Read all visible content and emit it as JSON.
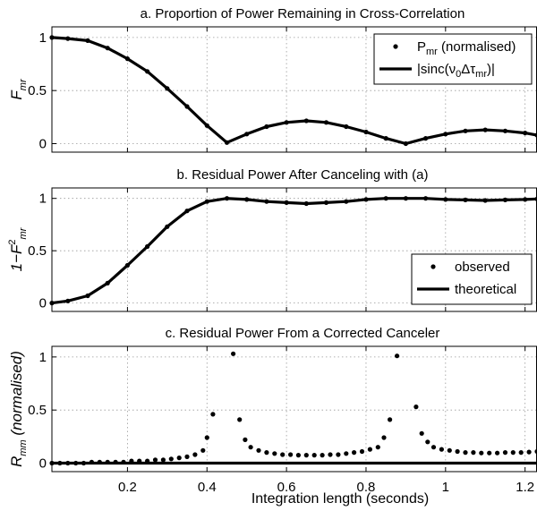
{
  "figure": {
    "xlabel": "Integration length (seconds)",
    "x_tick_labels": [
      "0.2",
      "0.4",
      "0.6",
      "0.8",
      "1",
      "1.2"
    ]
  },
  "chart_data": [
    {
      "type": "scatter",
      "title": "a. Proportion of Power Remaining in Cross-Correlation",
      "ylabel": {
        "base": "F",
        "sub": "mr"
      },
      "xlim": [
        0.01,
        1.23
      ],
      "ylim": [
        -0.08,
        1.1
      ],
      "y_ticks": [
        0,
        0.5,
        1
      ],
      "y_tick_labels": [
        "0",
        "0.5",
        "1"
      ],
      "grid": true,
      "legend_position": "top-right",
      "legend": [
        {
          "kind": "dots",
          "text_parts": [
            "P",
            "mr",
            " (normalised)"
          ]
        },
        {
          "kind": "line",
          "text_parts": [
            "|sinc(",
            "ν",
            "0",
            "Δτ",
            "mr",
            ")|"
          ]
        }
      ],
      "series": [
        {
          "name": "P_mr (normalised)",
          "style": "dots",
          "points": [
            [
              0.01,
              1.0
            ],
            [
              0.05,
              0.99
            ],
            [
              0.1,
              0.97
            ],
            [
              0.15,
              0.9
            ],
            [
              0.2,
              0.8
            ],
            [
              0.25,
              0.68
            ],
            [
              0.3,
              0.52
            ],
            [
              0.35,
              0.35
            ],
            [
              0.4,
              0.17
            ],
            [
              0.45,
              0.01
            ],
            [
              0.5,
              0.09
            ],
            [
              0.55,
              0.16
            ],
            [
              0.6,
              0.2
            ],
            [
              0.65,
              0.215
            ],
            [
              0.7,
              0.2
            ],
            [
              0.75,
              0.16
            ],
            [
              0.8,
              0.11
            ],
            [
              0.85,
              0.05
            ],
            [
              0.9,
              0.0
            ],
            [
              0.95,
              0.05
            ],
            [
              1.0,
              0.09
            ],
            [
              1.05,
              0.12
            ],
            [
              1.1,
              0.13
            ],
            [
              1.15,
              0.12
            ],
            [
              1.2,
              0.1
            ],
            [
              1.23,
              0.08
            ]
          ]
        },
        {
          "name": "|sinc(ν0Δτmr)|",
          "style": "line",
          "points": [
            [
              0.01,
              1.0
            ],
            [
              0.05,
              0.99
            ],
            [
              0.1,
              0.97
            ],
            [
              0.15,
              0.9
            ],
            [
              0.2,
              0.8
            ],
            [
              0.25,
              0.68
            ],
            [
              0.3,
              0.52
            ],
            [
              0.35,
              0.35
            ],
            [
              0.4,
              0.17
            ],
            [
              0.45,
              0.01
            ],
            [
              0.5,
              0.09
            ],
            [
              0.55,
              0.16
            ],
            [
              0.6,
              0.2
            ],
            [
              0.65,
              0.215
            ],
            [
              0.7,
              0.2
            ],
            [
              0.75,
              0.16
            ],
            [
              0.8,
              0.11
            ],
            [
              0.85,
              0.05
            ],
            [
              0.9,
              0.0
            ],
            [
              0.95,
              0.05
            ],
            [
              1.0,
              0.09
            ],
            [
              1.05,
              0.12
            ],
            [
              1.1,
              0.13
            ],
            [
              1.15,
              0.12
            ],
            [
              1.2,
              0.1
            ],
            [
              1.23,
              0.08
            ]
          ]
        }
      ]
    },
    {
      "type": "scatter",
      "title": "b. Residual Power After Canceling with (a)",
      "ylabel": {
        "base": "1−F",
        "sup": "2",
        "sub": "mr"
      },
      "xlim": [
        0.01,
        1.23
      ],
      "ylim": [
        -0.08,
        1.1
      ],
      "y_ticks": [
        0,
        0.5,
        1
      ],
      "y_tick_labels": [
        "0",
        "0.5",
        "1"
      ],
      "grid": true,
      "legend_position": "bottom-right",
      "legend": [
        {
          "kind": "dots",
          "text_parts": [
            "observed"
          ]
        },
        {
          "kind": "line",
          "text_parts": [
            "theoretical"
          ]
        }
      ],
      "series": [
        {
          "name": "observed",
          "style": "dots",
          "points": [
            [
              0.01,
              0.0
            ],
            [
              0.05,
              0.02
            ],
            [
              0.1,
              0.07
            ],
            [
              0.15,
              0.19
            ],
            [
              0.2,
              0.36
            ],
            [
              0.25,
              0.54
            ],
            [
              0.3,
              0.73
            ],
            [
              0.35,
              0.88
            ],
            [
              0.4,
              0.97
            ],
            [
              0.45,
              1.0
            ],
            [
              0.5,
              0.99
            ],
            [
              0.55,
              0.97
            ],
            [
              0.6,
              0.96
            ],
            [
              0.65,
              0.95
            ],
            [
              0.7,
              0.96
            ],
            [
              0.75,
              0.97
            ],
            [
              0.8,
              0.99
            ],
            [
              0.85,
              1.0
            ],
            [
              0.9,
              1.0
            ],
            [
              0.95,
              1.0
            ],
            [
              1.0,
              0.99
            ],
            [
              1.05,
              0.985
            ],
            [
              1.1,
              0.98
            ],
            [
              1.15,
              0.985
            ],
            [
              1.2,
              0.99
            ],
            [
              1.23,
              0.995
            ]
          ]
        },
        {
          "name": "theoretical",
          "style": "line",
          "points": [
            [
              0.01,
              0.0
            ],
            [
              0.05,
              0.02
            ],
            [
              0.1,
              0.07
            ],
            [
              0.15,
              0.19
            ],
            [
              0.2,
              0.36
            ],
            [
              0.25,
              0.54
            ],
            [
              0.3,
              0.73
            ],
            [
              0.35,
              0.88
            ],
            [
              0.4,
              0.97
            ],
            [
              0.45,
              1.0
            ],
            [
              0.5,
              0.99
            ],
            [
              0.55,
              0.97
            ],
            [
              0.6,
              0.96
            ],
            [
              0.65,
              0.95
            ],
            [
              0.7,
              0.96
            ],
            [
              0.75,
              0.97
            ],
            [
              0.8,
              0.99
            ],
            [
              0.85,
              1.0
            ],
            [
              0.9,
              1.0
            ],
            [
              0.95,
              1.0
            ],
            [
              1.0,
              0.99
            ],
            [
              1.05,
              0.985
            ],
            [
              1.1,
              0.98
            ],
            [
              1.15,
              0.985
            ],
            [
              1.2,
              0.99
            ],
            [
              1.23,
              0.995
            ]
          ]
        }
      ]
    },
    {
      "type": "scatter",
      "title": "c. Residual Power From a Corrected Canceler",
      "ylabel": {
        "base": "R",
        "sub": "mm",
        "suffix": "  (normalised)"
      },
      "xlim": [
        0.01,
        1.23
      ],
      "ylim": [
        -0.08,
        1.1
      ],
      "y_ticks": [
        0,
        0.5,
        1
      ],
      "y_tick_labels": [
        "0",
        "0.5",
        "1"
      ],
      "grid": true,
      "series": [
        {
          "name": "observed",
          "style": "dots",
          "points": [
            [
              0.01,
              0.0
            ],
            [
              0.03,
              0.0
            ],
            [
              0.05,
              0.0
            ],
            [
              0.07,
              0.0
            ],
            [
              0.09,
              0.0
            ],
            [
              0.11,
              0.01
            ],
            [
              0.13,
              0.01
            ],
            [
              0.15,
              0.01
            ],
            [
              0.17,
              0.01
            ],
            [
              0.19,
              0.01
            ],
            [
              0.21,
              0.02
            ],
            [
              0.23,
              0.02
            ],
            [
              0.25,
              0.02
            ],
            [
              0.27,
              0.03
            ],
            [
              0.29,
              0.03
            ],
            [
              0.31,
              0.04
            ],
            [
              0.33,
              0.05
            ],
            [
              0.35,
              0.06
            ],
            [
              0.37,
              0.08
            ],
            [
              0.39,
              0.12
            ],
            [
              0.4,
              0.24
            ],
            [
              0.415,
              0.46
            ],
            [
              0.466,
              1.03
            ],
            [
              0.482,
              0.41
            ],
            [
              0.496,
              0.22
            ],
            [
              0.51,
              0.15
            ],
            [
              0.53,
              0.12
            ],
            [
              0.55,
              0.1
            ],
            [
              0.57,
              0.09
            ],
            [
              0.59,
              0.08
            ],
            [
              0.61,
              0.08
            ],
            [
              0.63,
              0.075
            ],
            [
              0.65,
              0.075
            ],
            [
              0.67,
              0.075
            ],
            [
              0.69,
              0.075
            ],
            [
              0.71,
              0.08
            ],
            [
              0.73,
              0.08
            ],
            [
              0.75,
              0.09
            ],
            [
              0.77,
              0.1
            ],
            [
              0.79,
              0.11
            ],
            [
              0.81,
              0.13
            ],
            [
              0.83,
              0.15
            ],
            [
              0.845,
              0.24
            ],
            [
              0.86,
              0.41
            ],
            [
              0.878,
              1.01
            ],
            [
              0.926,
              0.53
            ],
            [
              0.94,
              0.28
            ],
            [
              0.955,
              0.2
            ],
            [
              0.97,
              0.15
            ],
            [
              0.99,
              0.13
            ],
            [
              1.01,
              0.12
            ],
            [
              1.03,
              0.11
            ],
            [
              1.05,
              0.1
            ],
            [
              1.07,
              0.1
            ],
            [
              1.09,
              0.095
            ],
            [
              1.11,
              0.095
            ],
            [
              1.13,
              0.095
            ],
            [
              1.15,
              0.1
            ],
            [
              1.17,
              0.1
            ],
            [
              1.19,
              0.1
            ],
            [
              1.21,
              0.105
            ],
            [
              1.23,
              0.11
            ]
          ]
        },
        {
          "name": "theoretical",
          "style": "line",
          "points": [
            [
              0.01,
              0.0
            ],
            [
              1.23,
              0.0
            ]
          ]
        }
      ]
    }
  ]
}
